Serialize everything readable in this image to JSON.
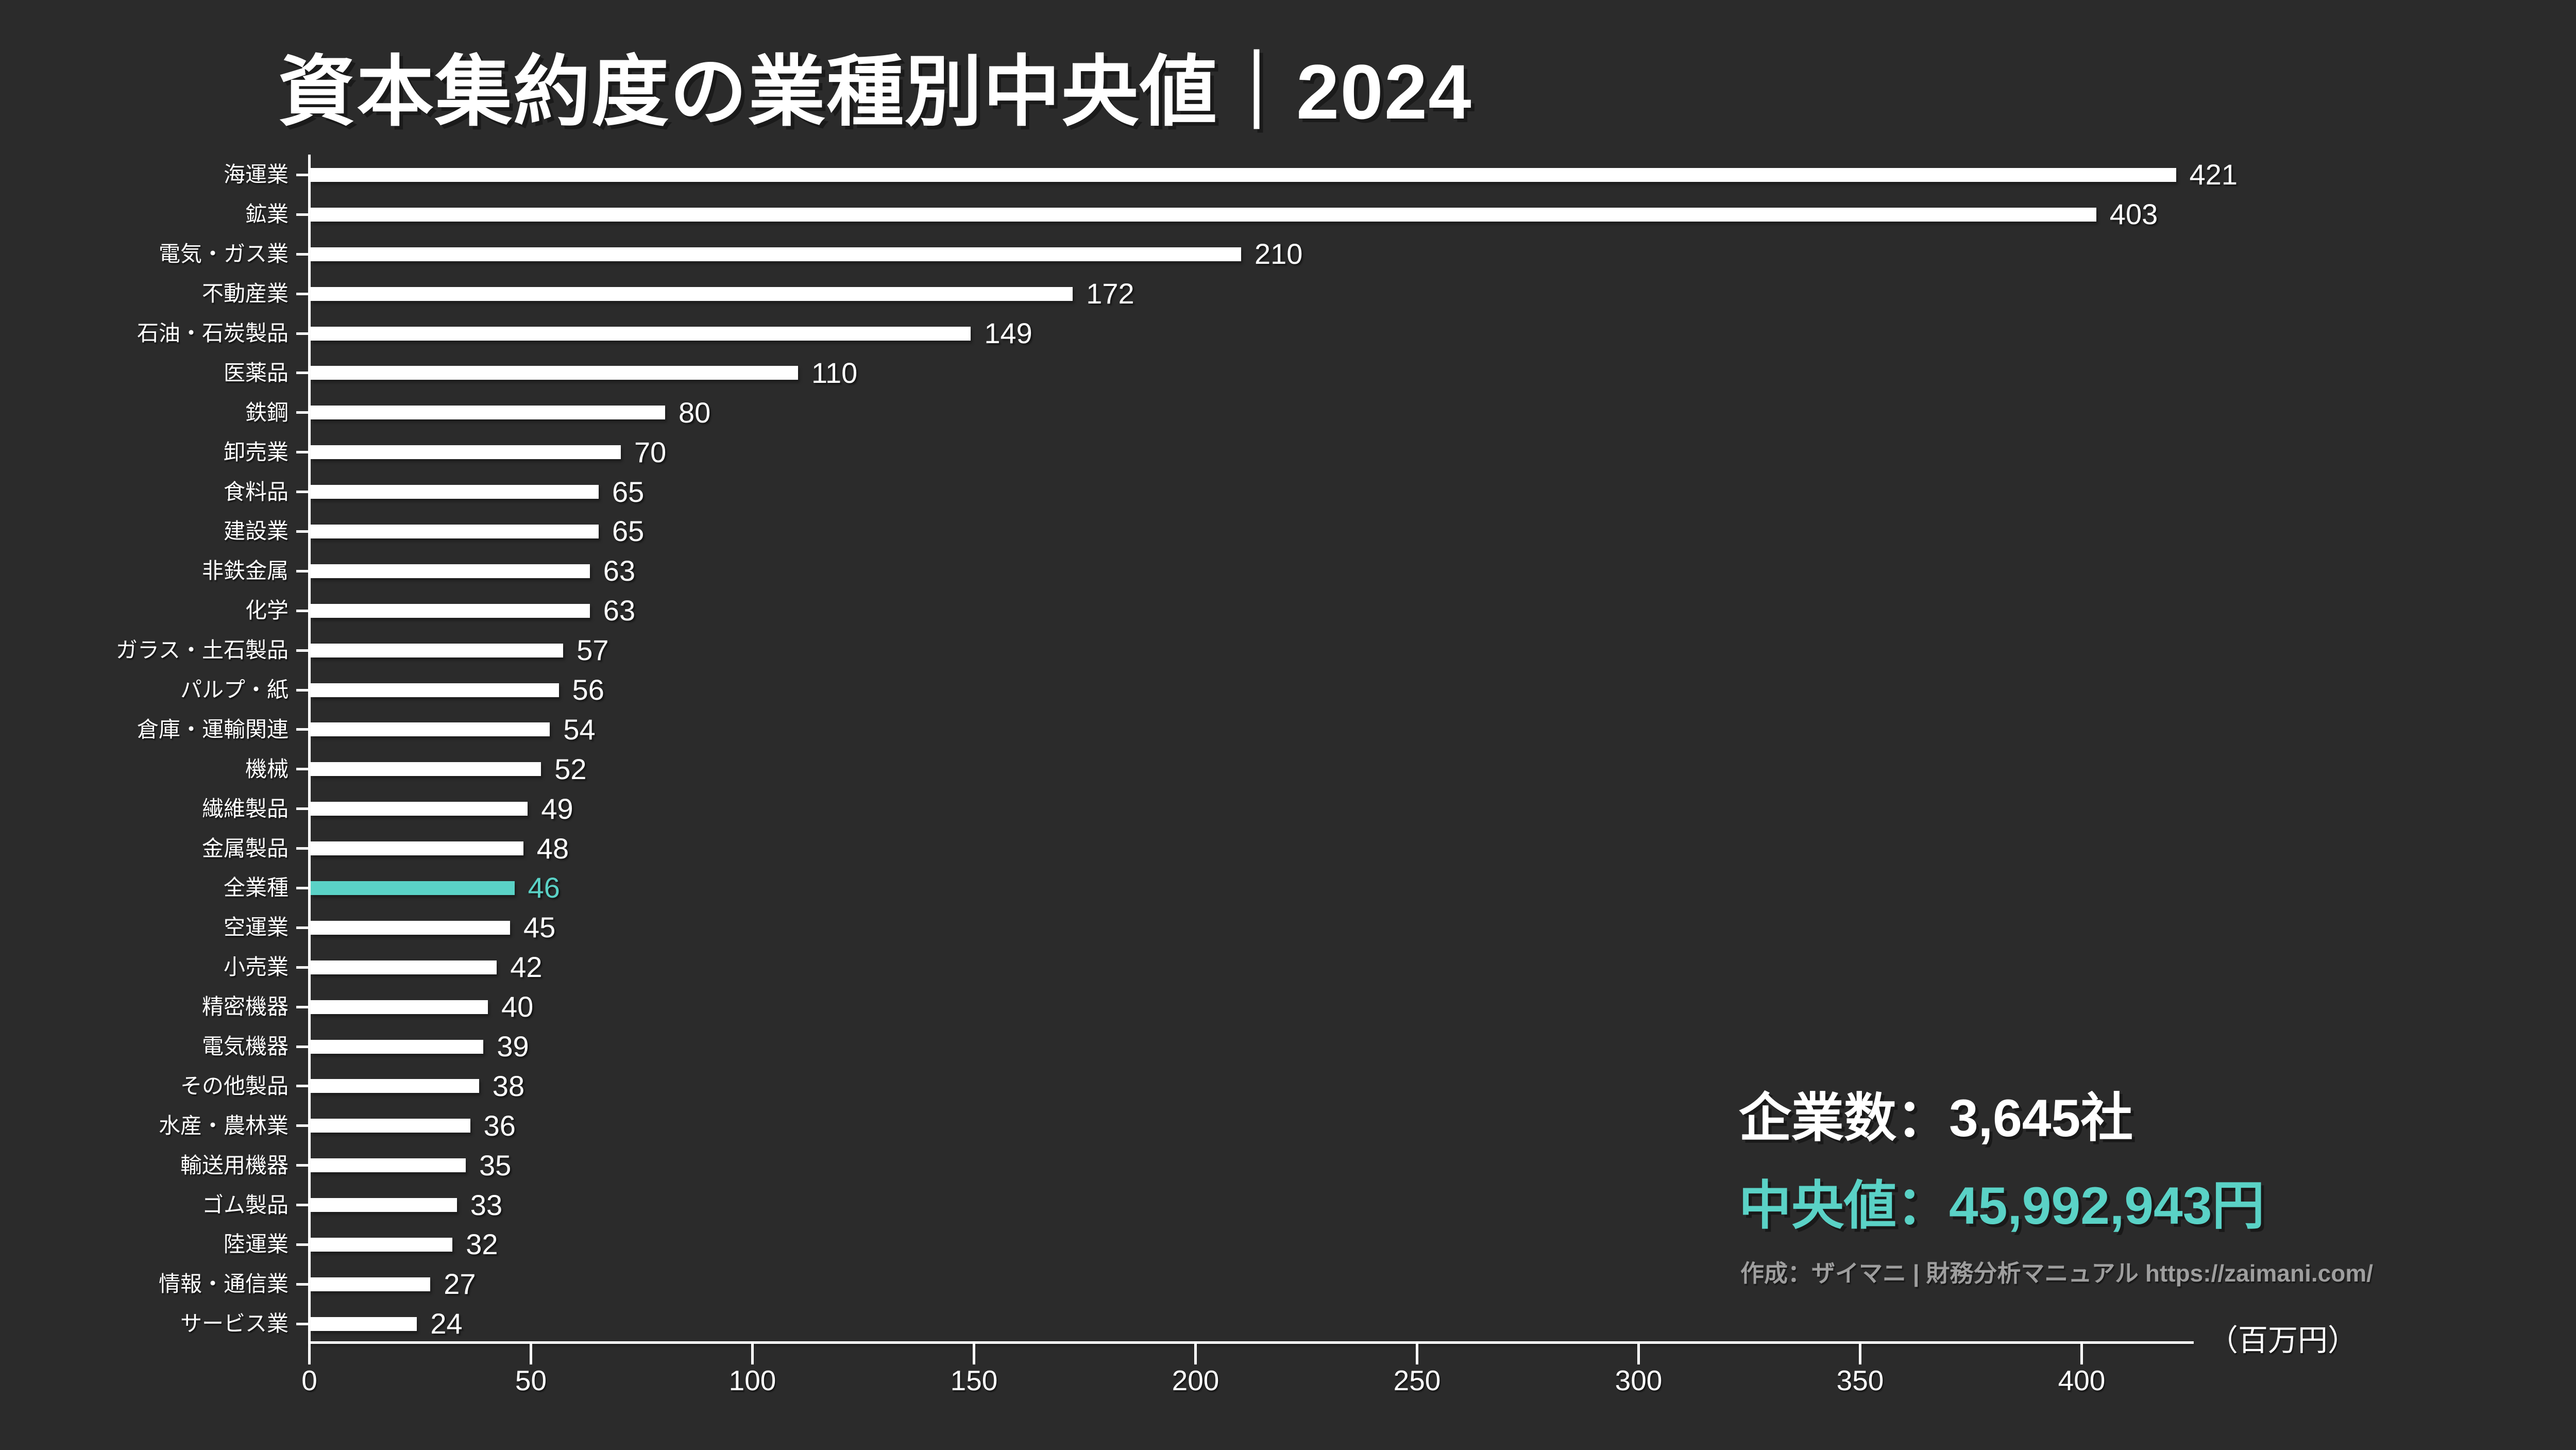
{
  "title": "資本集約度の業種別中央値｜2024",
  "chart_data": {
    "type": "bar",
    "orientation": "horizontal",
    "title": "資本集約度の業種別中央値｜2024",
    "categories": [
      "海運業",
      "鉱業",
      "電気・ガス業",
      "不動産業",
      "石油・石炭製品",
      "医薬品",
      "鉄鋼",
      "卸売業",
      "食料品",
      "建設業",
      "非鉄金属",
      "化学",
      "ガラス・土石製品",
      "パルプ・紙",
      "倉庫・運輸関連",
      "機械",
      "繊維製品",
      "金属製品",
      "全業種",
      "空運業",
      "小売業",
      "精密機器",
      "電気機器",
      "その他製品",
      "水産・農林業",
      "輸送用機器",
      "ゴム製品",
      "陸運業",
      "情報・通信業",
      "サービス業"
    ],
    "values": [
      421,
      403,
      210,
      172,
      149,
      110,
      80,
      70,
      65,
      65,
      63,
      63,
      57,
      56,
      54,
      52,
      49,
      48,
      46,
      45,
      42,
      40,
      39,
      38,
      36,
      35,
      33,
      32,
      27,
      24
    ],
    "highlight_category": "全業種",
    "highlight_value": 46,
    "x_ticks": [
      0,
      50,
      100,
      150,
      200,
      250,
      300,
      350,
      400
    ],
    "xlim": [
      0,
      425
    ],
    "xlabel_unit": "（百万円）",
    "grid": false,
    "bar_color": "#ffffff",
    "highlight_color": "#5ad2c6",
    "background_color": "#2b2b2b"
  },
  "stats": {
    "companies_label": "企業数：3,645社",
    "median_label": "中央値：45,992,943円"
  },
  "credit": "作成：ザイマニ | 財務分析マニュアル https://zaimani.com/"
}
